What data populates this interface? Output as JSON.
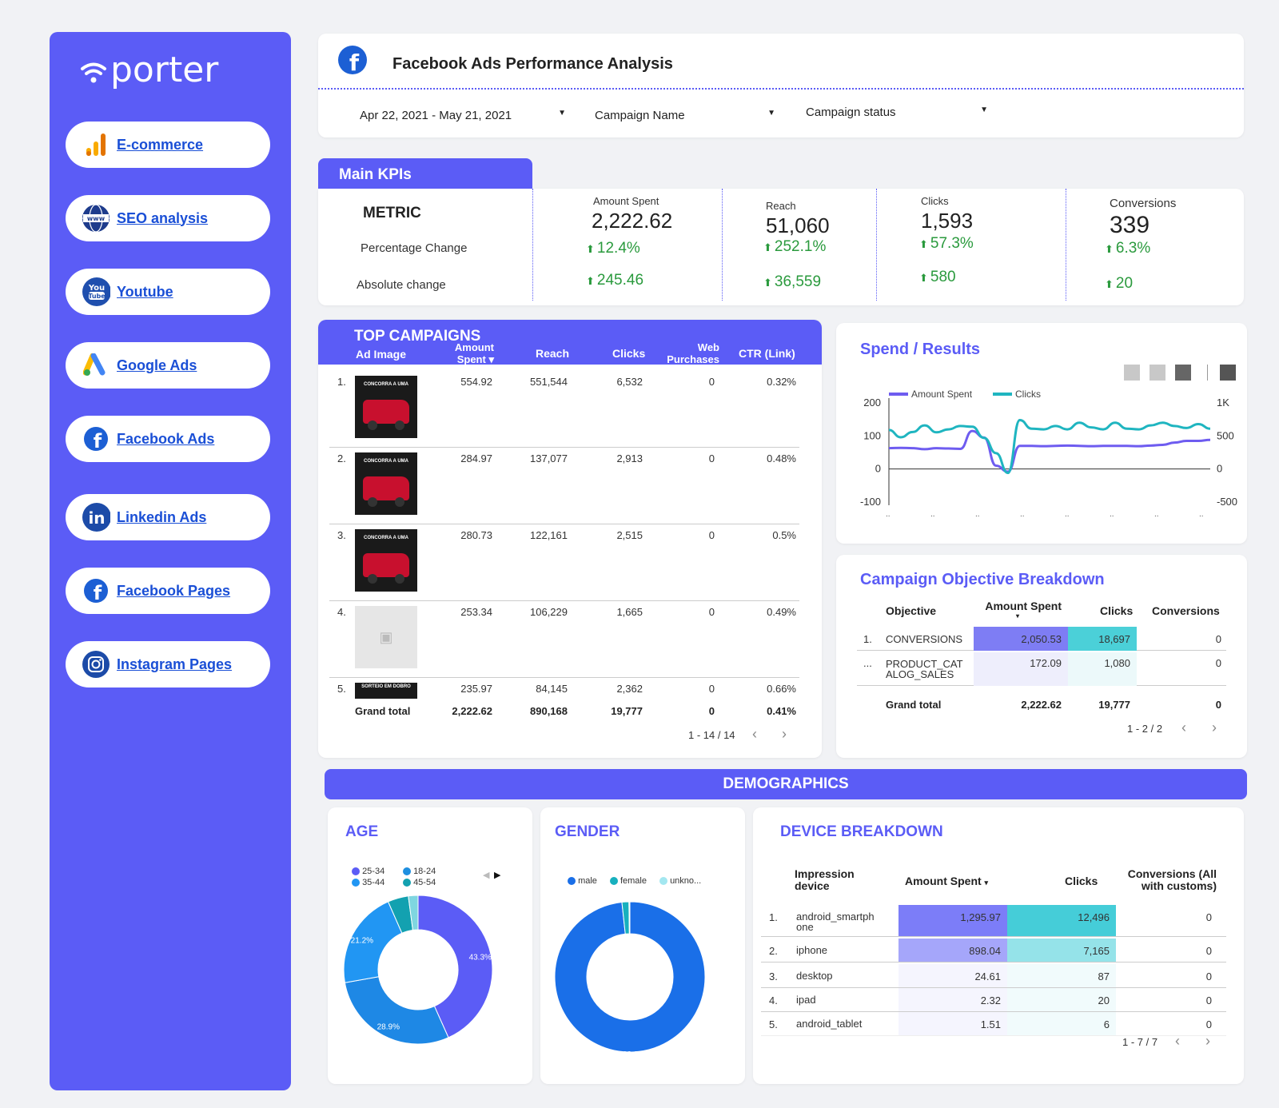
{
  "brand": {
    "name": "porter"
  },
  "sidebar": {
    "items": [
      {
        "label": "E-commerce",
        "icon": "analytics-icon"
      },
      {
        "label": "SEO analysis",
        "icon": "www-globe-icon"
      },
      {
        "label": "Youtube",
        "icon": "youtube-icon"
      },
      {
        "label": "Google Ads",
        "icon": "google-ads-icon"
      },
      {
        "label": "Facebook Ads",
        "icon": "facebook-icon"
      },
      {
        "label": "Linkedin Ads",
        "icon": "linkedin-icon"
      },
      {
        "label": "Facebook Pages",
        "icon": "facebook-icon"
      },
      {
        "label": "Instagram Pages",
        "icon": "instagram-icon"
      }
    ]
  },
  "header": {
    "title": "Facebook Ads Performance Analysis",
    "icon": "facebook-icon"
  },
  "filters": {
    "date": "Apr 22, 2021 - May 21, 2021",
    "campaign_name": "Campaign Name",
    "campaign_status": "Campaign status"
  },
  "kpis": {
    "section_label": "Main KPIs",
    "metric_label": "METRIC",
    "pct_label": "Percentage Change",
    "abs_label": "Absolute change",
    "items": [
      {
        "label": "Amount Spent",
        "value": "2,222.62",
        "pct": "12.4%",
        "abs": "245.46"
      },
      {
        "label": "Reach",
        "value": "51,060",
        "pct": "252.1%",
        "abs": "36,559"
      },
      {
        "label": "Clicks",
        "value": "1,593",
        "pct": "57.3%",
        "abs": "580"
      },
      {
        "label": "Conversions",
        "value": "339",
        "pct": "6.3%",
        "abs": "20"
      }
    ]
  },
  "top_campaigns": {
    "title": "TOP CAMPAIGNS",
    "columns": [
      "Ad Image",
      "Amount Spent",
      "Reach",
      "Clicks",
      "Web Purchases",
      "CTR (Link)"
    ],
    "sort_indicator": "▾",
    "rows": [
      {
        "n": "1.",
        "spent": "554.92",
        "reach": "551,544",
        "clicks": "6,532",
        "web": "0",
        "ctr": "0.32%",
        "img": "car"
      },
      {
        "n": "2.",
        "spent": "284.97",
        "reach": "137,077",
        "clicks": "2,913",
        "web": "0",
        "ctr": "0.48%",
        "img": "car"
      },
      {
        "n": "3.",
        "spent": "280.73",
        "reach": "122,161",
        "clicks": "2,515",
        "web": "0",
        "ctr": "0.5%",
        "img": "car"
      },
      {
        "n": "4.",
        "spent": "253.34",
        "reach": "106,229",
        "clicks": "1,665",
        "web": "0",
        "ctr": "0.49%",
        "img": "blank"
      },
      {
        "n": "5.",
        "spent": "235.97",
        "reach": "84,145",
        "clicks": "2,362",
        "web": "0",
        "ctr": "0.66%",
        "img": "banner"
      }
    ],
    "total": {
      "label": "Grand total",
      "spent": "2,222.62",
      "reach": "890,168",
      "clicks": "19,777",
      "web": "0",
      "ctr": "0.41%"
    },
    "pagination": "1 - 14 / 14",
    "img_text": "CONCORRA A UMA",
    "banner_text": "SORTEIO EM DOBRO"
  },
  "chart_data": {
    "type": "line",
    "title": "Spend / Results",
    "series": [
      {
        "name": "Amount Spent",
        "color": "#6e5cf0",
        "axis": "left",
        "values": [
          63,
          64,
          63,
          60,
          63,
          62,
          61,
          115,
          95,
          10,
          -8,
          70,
          70,
          69,
          70,
          71,
          70,
          69,
          70,
          70,
          70,
          69,
          71,
          73,
          80,
          85,
          85,
          88
        ]
      },
      {
        "name": "Clicks",
        "color": "#1fb5c0",
        "axis": "right",
        "values": [
          590,
          480,
          560,
          660,
          555,
          600,
          650,
          640,
          470,
          240,
          -60,
          740,
          610,
          600,
          650,
          600,
          700,
          630,
          600,
          700,
          610,
          600,
          660,
          700,
          650,
          620,
          680,
          610
        ]
      }
    ],
    "left_axis": {
      "ticks": [
        "200",
        "100",
        "0",
        "-100"
      ],
      "range": [
        -100,
        200
      ]
    },
    "right_axis": {
      "ticks": [
        "1K",
        "500",
        "0",
        "-500"
      ],
      "range": [
        -500,
        1000
      ]
    }
  },
  "objective": {
    "title": "Campaign Objective Breakdown",
    "columns": [
      "Objective",
      "Amount Spent",
      "Clicks",
      "Conversions"
    ],
    "rows": [
      {
        "n": "1.",
        "obj": "CONVERSIONS",
        "spent": "2,050.53",
        "clicks": "18,697",
        "conv": "0"
      },
      {
        "n": "...",
        "obj": "PRODUCT_CAT ALOG_SALES",
        "spent": "172.09",
        "clicks": "1,080",
        "conv": "0"
      }
    ],
    "total": {
      "label": "Grand total",
      "spent": "2,222.62",
      "clicks": "19,777",
      "conv": "0"
    },
    "pagination": "1 - 2 / 2"
  },
  "demographics": {
    "title": "DEMOGRAPHICS",
    "age": {
      "title": "AGE",
      "legend": [
        {
          "name": "25-34",
          "color": "#5b5cf6"
        },
        {
          "name": "18-24",
          "color": "#1e8fe0"
        },
        {
          "name": "35-44",
          "color": "#2196f3"
        },
        {
          "name": "45-54",
          "color": "#13a1b0"
        }
      ],
      "slices": [
        {
          "name": "25-34",
          "value": 43.3,
          "label": "43.3%",
          "color": "#5b5cf6"
        },
        {
          "name": "35-44",
          "value": 28.9,
          "label": "28.9%",
          "color": "#1e88e5"
        },
        {
          "name": "18-24",
          "value": 21.2,
          "label": "21.2%",
          "color": "#2196f3"
        },
        {
          "name": "45-54",
          "value": 4.5,
          "label": "",
          "color": "#13a1b0"
        },
        {
          "name": "other",
          "value": 2.1,
          "label": "",
          "color": "#7fd6e0"
        }
      ]
    },
    "gender": {
      "title": "GENDER",
      "legend": [
        {
          "name": "male",
          "color": "#1a6fe8"
        },
        {
          "name": "female",
          "color": "#17b0be"
        },
        {
          "name": "unkno...",
          "color": "#a3e7f0"
        }
      ],
      "slices": [
        {
          "name": "male",
          "value": 98.3,
          "label": "98.3%",
          "color": "#1a6fe8"
        },
        {
          "name": "female",
          "value": 1.5,
          "label": "",
          "color": "#17b0be"
        },
        {
          "name": "unknown",
          "value": 0.2,
          "label": "",
          "color": "#a3e7f0"
        }
      ]
    },
    "device": {
      "title": "DEVICE BREAKDOWN",
      "columns": [
        "Impression device",
        "Amount Spent",
        "Clicks",
        "Conversions (All with customs)"
      ],
      "rows": [
        {
          "n": "1.",
          "dev": "android_smartph one",
          "spent": "1,295.97",
          "clicks": "12,496",
          "conv": "0"
        },
        {
          "n": "2.",
          "dev": "iphone",
          "spent": "898.04",
          "clicks": "7,165",
          "conv": "0"
        },
        {
          "n": "3.",
          "dev": "desktop",
          "spent": "24.61",
          "clicks": "87",
          "conv": "0"
        },
        {
          "n": "4.",
          "dev": "ipad",
          "spent": "2.32",
          "clicks": "20",
          "conv": "0"
        },
        {
          "n": "5.",
          "dev": "android_tablet",
          "spent": "1.51",
          "clicks": "6",
          "conv": "0"
        }
      ],
      "pagination": "1 - 7 / 7"
    }
  }
}
